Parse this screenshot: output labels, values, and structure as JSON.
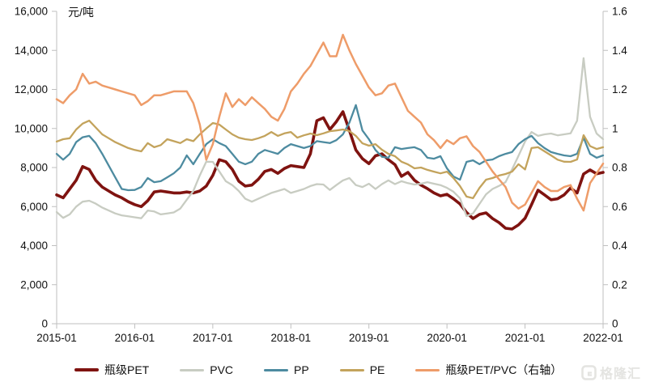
{
  "unit_label": "元/吨",
  "watermark": {
    "text": "格隆汇"
  },
  "chart_data": {
    "type": "line",
    "title": "",
    "unit_label": "元/吨",
    "x_months": 85,
    "x_tick_labels": [
      "2015-01",
      "2016-01",
      "2017-01",
      "2018-01",
      "2019-01",
      "2020-01",
      "2021-01",
      "2022-01"
    ],
    "left_axis": {
      "min": 0,
      "max": 16000,
      "step": 2000,
      "tick_labels": [
        "0",
        "2,000",
        "4,000",
        "6,000",
        "8,000",
        "10,000",
        "12,000",
        "14,000",
        "16,000"
      ]
    },
    "right_axis": {
      "min": 0,
      "max": 1.6,
      "step": 0.2,
      "tick_labels": [
        "0",
        "0.2",
        "0.4",
        "0.6",
        "0.8",
        "1",
        "1.2",
        "1.4",
        "1.6"
      ]
    },
    "grid": false,
    "legend_position": "bottom",
    "axis_color": "#bfbfbf",
    "label_color": "#111111",
    "series": [
      {
        "name": "瓶级PET",
        "color": "#7F1310",
        "axis": "left",
        "width": 3.6,
        "values": [
          6600,
          6450,
          6900,
          7350,
          8050,
          7900,
          7350,
          7000,
          6800,
          6600,
          6450,
          6250,
          6100,
          6000,
          6300,
          6750,
          6800,
          6750,
          6700,
          6700,
          6750,
          6700,
          6800,
          7050,
          7600,
          8400,
          8300,
          7900,
          7300,
          7050,
          7100,
          7400,
          7800,
          7900,
          7700,
          7950,
          8100,
          8050,
          8000,
          8700,
          10400,
          10550,
          9950,
          10350,
          10860,
          9900,
          8900,
          8450,
          8200,
          8600,
          8700,
          8400,
          8150,
          7550,
          7750,
          7350,
          7100,
          6920,
          6700,
          6550,
          6630,
          6400,
          6135,
          5700,
          5390,
          5600,
          5680,
          5390,
          5180,
          4890,
          4850,
          5060,
          5400,
          6100,
          6840,
          6600,
          6350,
          6400,
          6600,
          6950,
          6700,
          7670,
          7880,
          7680,
          7750
        ]
      },
      {
        "name": "PVC",
        "color": "#C8CCC2",
        "axis": "left",
        "width": 2.3,
        "values": [
          5720,
          5420,
          5600,
          6000,
          6250,
          6300,
          6150,
          5950,
          5800,
          5650,
          5550,
          5500,
          5450,
          5400,
          5800,
          5750,
          5600,
          5650,
          5700,
          5900,
          6350,
          6800,
          7600,
          8300,
          8290,
          7800,
          7300,
          7100,
          6800,
          6400,
          6250,
          6400,
          6550,
          6700,
          6800,
          6900,
          6700,
          6800,
          6900,
          7050,
          7150,
          7130,
          6850,
          7100,
          7340,
          7460,
          7100,
          7000,
          7170,
          6900,
          7150,
          7340,
          7150,
          7300,
          7200,
          7130,
          7170,
          7250,
          7170,
          7100,
          6960,
          6760,
          6430,
          5513,
          5650,
          6135,
          6630,
          6900,
          7060,
          7254,
          7900,
          8600,
          9330,
          9820,
          9620,
          9700,
          9740,
          9650,
          9700,
          9750,
          10400,
          13600,
          10600,
          9740,
          9450
        ]
      },
      {
        "name": "PP",
        "color": "#4D8BA0",
        "axis": "left",
        "width": 2.3,
        "values": [
          8700,
          8400,
          8700,
          9300,
          9550,
          9620,
          9250,
          8700,
          8100,
          7500,
          6900,
          6840,
          6850,
          7000,
          7460,
          7250,
          7300,
          7500,
          7700,
          8000,
          8620,
          8170,
          8700,
          9200,
          9450,
          9250,
          9100,
          8700,
          8300,
          8170,
          8300,
          8700,
          8900,
          8800,
          8700,
          9000,
          9200,
          9100,
          9000,
          9100,
          9350,
          9300,
          9250,
          9400,
          9700,
          10300,
          11200,
          9900,
          9450,
          8900,
          8550,
          8500,
          9040,
          8950,
          9000,
          9040,
          8900,
          8500,
          8450,
          8580,
          7960,
          7540,
          7380,
          8290,
          8370,
          8170,
          8370,
          8410,
          8580,
          8700,
          8790,
          9200,
          9450,
          9620,
          9250,
          8995,
          8790,
          8700,
          8620,
          8580,
          8700,
          9530,
          8700,
          8500,
          8620
        ]
      },
      {
        "name": "PE",
        "color": "#C3A35C",
        "axis": "left",
        "width": 2.3,
        "values": [
          9330,
          9450,
          9500,
          9950,
          10250,
          10400,
          10050,
          9700,
          9500,
          9300,
          9150,
          9000,
          8900,
          8830,
          9250,
          9040,
          9150,
          9450,
          9350,
          9250,
          9450,
          9350,
          9700,
          10000,
          10280,
          10200,
          9950,
          9700,
          9530,
          9450,
          9410,
          9500,
          9620,
          9820,
          9620,
          9750,
          9820,
          9530,
          9650,
          9740,
          9660,
          9750,
          9860,
          9900,
          9950,
          9870,
          9620,
          9240,
          9120,
          9200,
          8910,
          8700,
          8580,
          8300,
          8160,
          7960,
          8000,
          7880,
          7790,
          7700,
          7790,
          7460,
          7050,
          6510,
          6430,
          6960,
          7380,
          7460,
          7590,
          7670,
          7790,
          8170,
          7900,
          9000,
          9040,
          8830,
          8620,
          8400,
          8300,
          8290,
          8410,
          9660,
          9100,
          8950,
          9040
        ]
      },
      {
        "name": "瓶级PET/PVC（右轴）",
        "color": "#EE9C69",
        "axis": "right",
        "width": 2.5,
        "values": [
          1.15,
          1.13,
          1.17,
          1.2,
          1.28,
          1.23,
          1.24,
          1.22,
          1.21,
          1.2,
          1.19,
          1.18,
          1.17,
          1.12,
          1.14,
          1.17,
          1.17,
          1.18,
          1.19,
          1.19,
          1.19,
          1.13,
          1.02,
          0.84,
          0.92,
          1.06,
          1.18,
          1.11,
          1.15,
          1.12,
          1.16,
          1.13,
          1.1,
          1.06,
          1.04,
          1.1,
          1.19,
          1.23,
          1.28,
          1.32,
          1.38,
          1.44,
          1.37,
          1.37,
          1.48,
          1.4,
          1.33,
          1.27,
          1.21,
          1.17,
          1.18,
          1.22,
          1.23,
          1.16,
          1.09,
          1.06,
          1.03,
          0.97,
          0.94,
          0.9,
          0.94,
          0.92,
          0.95,
          0.96,
          0.91,
          0.88,
          0.83,
          0.78,
          0.74,
          0.7,
          0.62,
          0.59,
          0.61,
          0.67,
          0.73,
          0.7,
          0.68,
          0.68,
          0.7,
          0.71,
          0.64,
          0.58,
          0.72,
          0.77,
          0.82
        ]
      }
    ]
  }
}
